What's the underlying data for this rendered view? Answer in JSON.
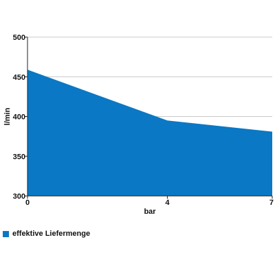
{
  "chart_data": {
    "type": "area",
    "title": "",
    "xlabel": "bar",
    "ylabel": "l/min",
    "x": [
      0,
      4,
      7
    ],
    "xticks": [
      0,
      4,
      7
    ],
    "xlim": [
      0,
      7
    ],
    "ylim": [
      300,
      500
    ],
    "yticks": [
      300,
      350,
      400,
      450,
      500
    ],
    "grid": true,
    "legend_position": "bottom-left",
    "series": [
      {
        "name": "effektive Liefermenge",
        "values": [
          459,
          395,
          381
        ],
        "color": "#0a78c4"
      }
    ]
  },
  "colors": {
    "grid": "#c8c8c8",
    "axis": "#222222",
    "fill": "#0a78c4"
  }
}
